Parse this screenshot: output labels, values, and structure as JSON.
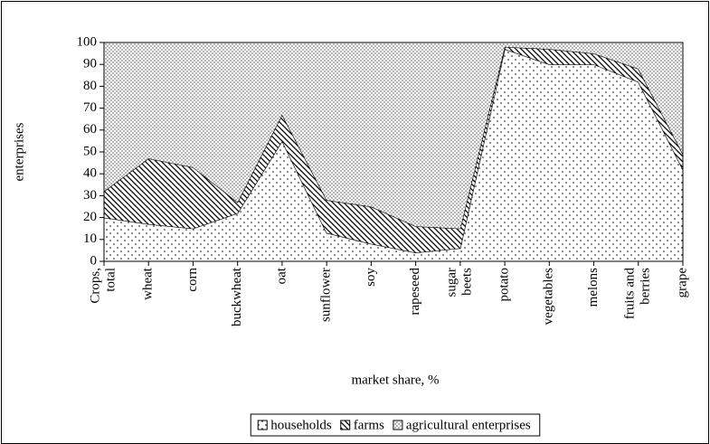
{
  "chart_data": {
    "type": "stacked_area",
    "y_label": "enterprises",
    "x_label": "market share, %",
    "categories": [
      "Crops, total",
      "wheat",
      "corn",
      "buckwheat",
      "oat",
      "sunflower",
      "soy",
      "rapeseed",
      "sugar beets",
      "potato",
      "vegetables",
      "melons",
      "fruits and berries",
      "grape"
    ],
    "series": [
      {
        "name": "households",
        "values": [
          20,
          17,
          15,
          22,
          55,
          13,
          8,
          4,
          6,
          97,
          90,
          90,
          82,
          42
        ]
      },
      {
        "name": "farms",
        "values": [
          12,
          30,
          28,
          5,
          12,
          15,
          17,
          12,
          9,
          1,
          7,
          5,
          6,
          7
        ]
      },
      {
        "name": "agricultural enterprises",
        "values": [
          68,
          53,
          57,
          73,
          33,
          72,
          75,
          84,
          85,
          2,
          3,
          5,
          12,
          51
        ]
      }
    ],
    "ylim": [
      0,
      100
    ],
    "yticks": [
      0,
      10,
      20,
      30,
      40,
      50,
      60,
      70,
      80,
      90,
      100
    ],
    "legend": "bottom"
  }
}
